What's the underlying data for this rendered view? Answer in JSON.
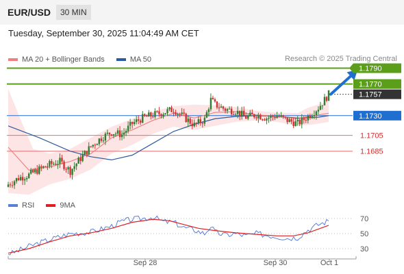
{
  "header": {
    "symbol": "EUR/USD",
    "period": "30 MIN",
    "timestamp": "Tuesday, September 30, 2025 11:04:49 AM CET"
  },
  "legend": {
    "ma20_label": "MA 20 + Bollinger Bands",
    "ma50_label": "MA 50",
    "source": "Research © 2025 Trading Central",
    "rsi_label": "RSI",
    "rsi_ma_label": "9MA"
  },
  "colors": {
    "up_candle": "#2e7d32",
    "down_candle": "#d32f2f",
    "bollinger_fill": "#fde0e0",
    "ma20": "#f08080",
    "ma50": "#2c5aa0",
    "resistance": "#5a9e1a",
    "pivot": "#1f6fd1",
    "support": "#e07070",
    "last_price": "#333333",
    "rsi": "#5b7fd6",
    "rsi_ma": "#e02020"
  },
  "chart_data": [
    {
      "type": "candlestick",
      "title": "EUR/USD 30 MIN",
      "x_ticks": [
        "Sep 28",
        "Sep 30",
        "Oct 1"
      ],
      "ylim": [
        1.1625,
        1.18
      ],
      "levels": [
        {
          "label": "1.1790",
          "value": 1.179,
          "kind": "resistance"
        },
        {
          "label": "1.1770",
          "value": 1.177,
          "kind": "resistance"
        },
        {
          "label": "1.1757",
          "value": 1.1757,
          "kind": "last"
        },
        {
          "label": "1.1730",
          "value": 1.173,
          "kind": "pivot"
        },
        {
          "label": "1.1705",
          "value": 1.1705,
          "kind": "support"
        },
        {
          "label": "1.1685",
          "value": 1.1685,
          "kind": "support"
        }
      ],
      "close_path": [
        [
          0,
          1.1643
        ],
        [
          5,
          1.1651
        ],
        [
          10,
          1.1655
        ],
        [
          15,
          1.1662
        ],
        [
          20,
          1.1668
        ],
        [
          25,
          1.1672
        ],
        [
          30,
          1.166
        ],
        [
          35,
          1.1676
        ],
        [
          40,
          1.1691
        ],
        [
          45,
          1.1702
        ],
        [
          50,
          1.1709
        ],
        [
          55,
          1.1706
        ],
        [
          60,
          1.172
        ],
        [
          65,
          1.1727
        ],
        [
          70,
          1.1731
        ],
        [
          75,
          1.1734
        ],
        [
          80,
          1.1738
        ],
        [
          85,
          1.1728
        ],
        [
          90,
          1.1718
        ],
        [
          95,
          1.1725
        ],
        [
          98,
          1.175
        ],
        [
          100,
          1.1744
        ],
        [
          105,
          1.1738
        ],
        [
          110,
          1.1736
        ],
        [
          115,
          1.1728
        ],
        [
          120,
          1.1731
        ],
        [
          125,
          1.1727
        ],
        [
          130,
          1.173
        ],
        [
          135,
          1.1724
        ],
        [
          140,
          1.172
        ],
        [
          145,
          1.1729
        ],
        [
          150,
          1.174
        ],
        [
          153,
          1.175
        ],
        [
          155,
          1.1757
        ]
      ],
      "ma20": [
        [
          0,
          1.169
        ],
        [
          10,
          1.1661
        ],
        [
          20,
          1.1665
        ],
        [
          30,
          1.1672
        ],
        [
          40,
          1.1682
        ],
        [
          50,
          1.1702
        ],
        [
          60,
          1.1712
        ],
        [
          70,
          1.1724
        ],
        [
          80,
          1.1733
        ],
        [
          90,
          1.1727
        ],
        [
          100,
          1.1734
        ],
        [
          110,
          1.1735
        ],
        [
          120,
          1.1731
        ],
        [
          130,
          1.1729
        ],
        [
          140,
          1.1726
        ],
        [
          148,
          1.173
        ],
        [
          155,
          1.1733
        ]
      ],
      "ma50": [
        [
          0,
          1.1717
        ],
        [
          15,
          1.1702
        ],
        [
          30,
          1.1685
        ],
        [
          40,
          1.1678
        ],
        [
          50,
          1.1674
        ],
        [
          60,
          1.168
        ],
        [
          70,
          1.1695
        ],
        [
          80,
          1.171
        ],
        [
          90,
          1.1719
        ],
        [
          100,
          1.1726
        ],
        [
          110,
          1.1729
        ],
        [
          120,
          1.173
        ],
        [
          130,
          1.1729
        ],
        [
          140,
          1.1727
        ],
        [
          150,
          1.1728
        ],
        [
          155,
          1.173
        ]
      ],
      "bollinger_upper": [
        [
          0,
          1.1764
        ],
        [
          6,
          1.1725
        ],
        [
          12,
          1.1688
        ],
        [
          20,
          1.1682
        ],
        [
          30,
          1.1688
        ],
        [
          40,
          1.1702
        ],
        [
          50,
          1.1716
        ],
        [
          60,
          1.1726
        ],
        [
          70,
          1.1735
        ],
        [
          80,
          1.1742
        ],
        [
          90,
          1.1744
        ],
        [
          100,
          1.1743
        ],
        [
          110,
          1.1741
        ],
        [
          120,
          1.1736
        ],
        [
          130,
          1.1734
        ],
        [
          140,
          1.1733
        ],
        [
          145,
          1.174
        ],
        [
          155,
          1.1748
        ]
      ],
      "bollinger_lower": [
        [
          0,
          1.1632
        ],
        [
          10,
          1.163
        ],
        [
          20,
          1.1643
        ],
        [
          30,
          1.165
        ],
        [
          40,
          1.1662
        ],
        [
          50,
          1.1682
        ],
        [
          60,
          1.1693
        ],
        [
          70,
          1.1707
        ],
        [
          80,
          1.1716
        ],
        [
          90,
          1.1712
        ],
        [
          100,
          1.1717
        ],
        [
          110,
          1.1722
        ],
        [
          120,
          1.1724
        ],
        [
          130,
          1.1722
        ],
        [
          140,
          1.1717
        ],
        [
          148,
          1.1719
        ],
        [
          155,
          1.1722
        ]
      ],
      "forecast_arrow": {
        "from": [
          156,
          1.1757
        ],
        "to": [
          169,
          1.1788
        ]
      }
    },
    {
      "type": "line",
      "title": "RSI",
      "ylim": [
        20,
        80
      ],
      "y_ticks": [
        70,
        50,
        30
      ],
      "series": [
        {
          "name": "RSI",
          "values": [
            [
              0,
              22
            ],
            [
              10,
              33
            ],
            [
              20,
              42
            ],
            [
              30,
              50
            ],
            [
              40,
              52
            ],
            [
              50,
              60
            ],
            [
              55,
              66
            ],
            [
              60,
              69
            ],
            [
              65,
              70
            ],
            [
              70,
              72
            ],
            [
              75,
              66
            ],
            [
              80,
              65
            ],
            [
              85,
              58
            ],
            [
              90,
              55
            ],
            [
              95,
              50
            ],
            [
              98,
              60
            ],
            [
              100,
              52
            ],
            [
              105,
              48
            ],
            [
              110,
              50
            ],
            [
              115,
              47
            ],
            [
              120,
              50
            ],
            [
              125,
              48
            ],
            [
              130,
              46
            ],
            [
              135,
              44
            ],
            [
              140,
              45
            ],
            [
              145,
              55
            ],
            [
              150,
              62
            ],
            [
              155,
              67
            ]
          ]
        },
        {
          "name": "9MA",
          "values": [
            [
              0,
              24
            ],
            [
              10,
              30
            ],
            [
              20,
              39
            ],
            [
              30,
              47
            ],
            [
              40,
              51
            ],
            [
              50,
              57
            ],
            [
              60,
              65
            ],
            [
              70,
              69
            ],
            [
              78,
              67
            ],
            [
              85,
              62
            ],
            [
              92,
              57
            ],
            [
              100,
              54
            ],
            [
              110,
              51
            ],
            [
              120,
              49
            ],
            [
              130,
              47
            ],
            [
              138,
              47
            ],
            [
              145,
              51
            ],
            [
              155,
              61
            ]
          ]
        }
      ]
    }
  ]
}
